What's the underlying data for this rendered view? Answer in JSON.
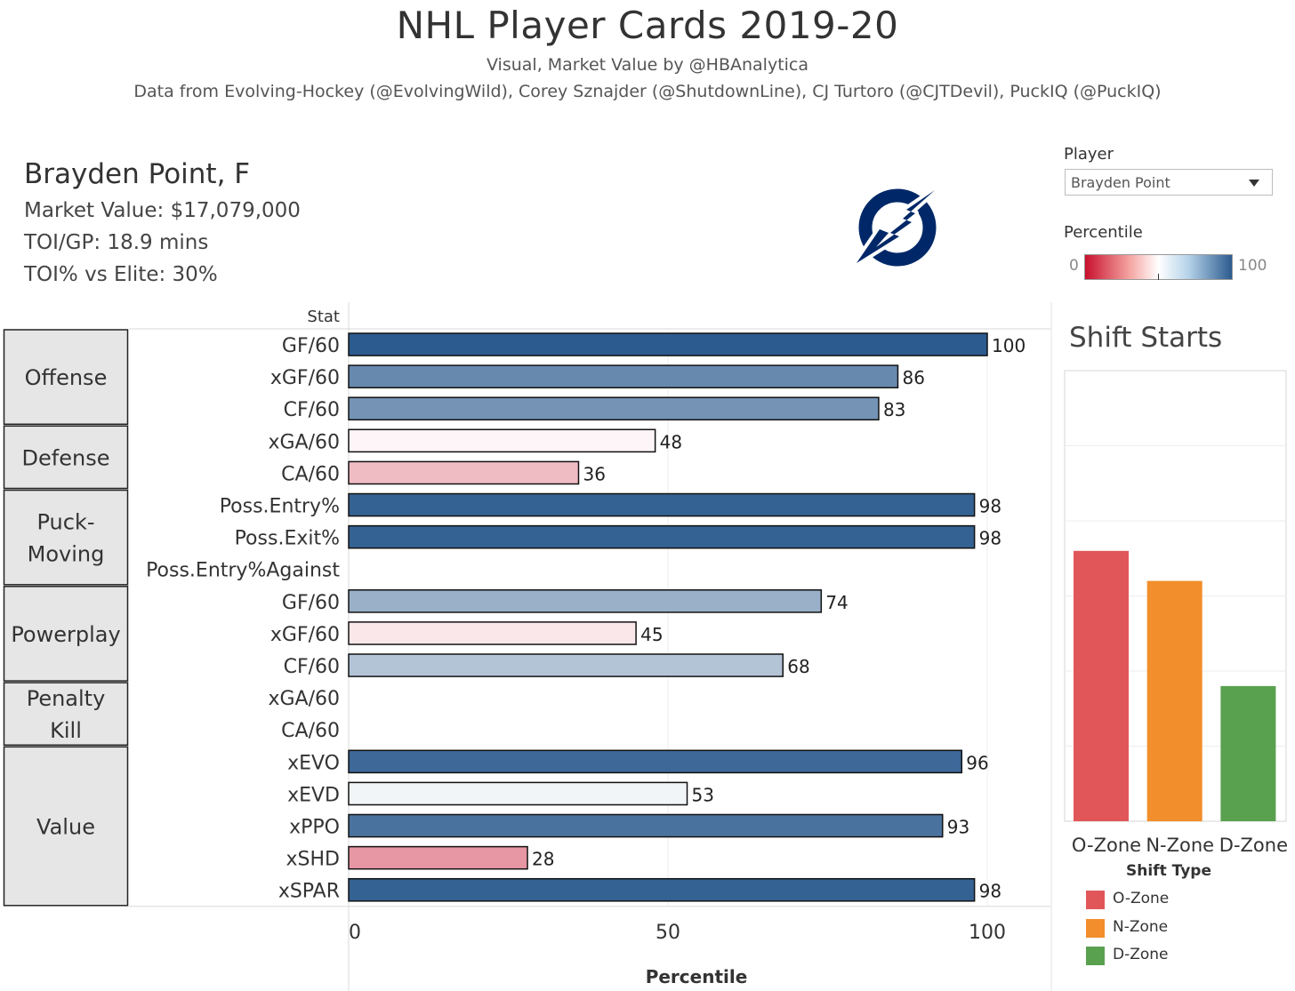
{
  "header": {
    "title": "NHL Player Cards 2019-20",
    "subtitle": "Visual, Market Value by @HBAnalytica",
    "credits": "Data from Evolving-Hockey (@EvolvingWild), Corey Sznajder (@ShutdownLine), CJ Turtoro (@CJTDevil), PuckIQ (@PuckIQ)"
  },
  "player": {
    "name": "Brayden Point, F",
    "market_value": "Market Value: $17,079,000",
    "toi_gp": "TOI/GP: 18.9 mins",
    "toi_elite": "TOI% vs Elite: 30%"
  },
  "filters": {
    "player_label": "Player",
    "player_value": "Brayden Point",
    "percentile_label": "Percentile",
    "percentile_min": "0",
    "percentile_max": "100"
  },
  "logo": {
    "icon": "lightning-bolt-logo-icon",
    "color": "#002868"
  },
  "chart_data": [
    {
      "type": "bar",
      "orientation": "horizontal",
      "row_header": "Stat",
      "xlabel": "Percentile",
      "xlim": [
        0,
        100
      ],
      "xticks": [
        0,
        50,
        100
      ],
      "grid": true,
      "color_scale": {
        "low": "#c8102e",
        "mid": "#ffffff",
        "high": "#2c5b8f",
        "range": [
          0,
          100
        ]
      },
      "groups": [
        {
          "name": "Offense",
          "rows": [
            {
              "stat": "GF/60",
              "value": 100
            },
            {
              "stat": "xGF/60",
              "value": 86
            },
            {
              "stat": "CF/60",
              "value": 83
            }
          ]
        },
        {
          "name": "Defense",
          "rows": [
            {
              "stat": "xGA/60",
              "value": 48
            },
            {
              "stat": "CA/60",
              "value": 36
            }
          ]
        },
        {
          "name": "Puck-Moving",
          "lines": [
            "Puck-",
            "Moving"
          ],
          "rows": [
            {
              "stat": "Poss.Entry%",
              "value": 98
            },
            {
              "stat": "Poss.Exit%",
              "value": 98
            },
            {
              "stat": "Poss.Entry%Against",
              "value": null
            }
          ]
        },
        {
          "name": "Powerplay",
          "rows": [
            {
              "stat": "GF/60",
              "value": 74
            },
            {
              "stat": "xGF/60",
              "value": 45
            },
            {
              "stat": "CF/60",
              "value": 68
            }
          ]
        },
        {
          "name": "Penalty Kill",
          "lines": [
            "Penalty",
            "Kill"
          ],
          "rows": [
            {
              "stat": "xGA/60",
              "value": null
            },
            {
              "stat": "CA/60",
              "value": null
            }
          ]
        },
        {
          "name": "Value",
          "rows": [
            {
              "stat": "xEVO",
              "value": 96
            },
            {
              "stat": "xEVD",
              "value": 53
            },
            {
              "stat": "xPPO",
              "value": 93
            },
            {
              "stat": "xSHD",
              "value": 28
            },
            {
              "stat": "xSPAR",
              "value": 98
            }
          ]
        }
      ]
    },
    {
      "type": "bar",
      "title": "Shift Starts",
      "xlabel": "Shift Type",
      "categories": [
        "O-Zone",
        "N-Zone",
        "D-Zone"
      ],
      "values": [
        0.36,
        0.32,
        0.18
      ],
      "ylim": [
        0,
        0.6
      ],
      "colors": [
        "#e15759",
        "#f28e2b",
        "#59a14f"
      ],
      "grid": true,
      "legend": "bottom"
    }
  ]
}
